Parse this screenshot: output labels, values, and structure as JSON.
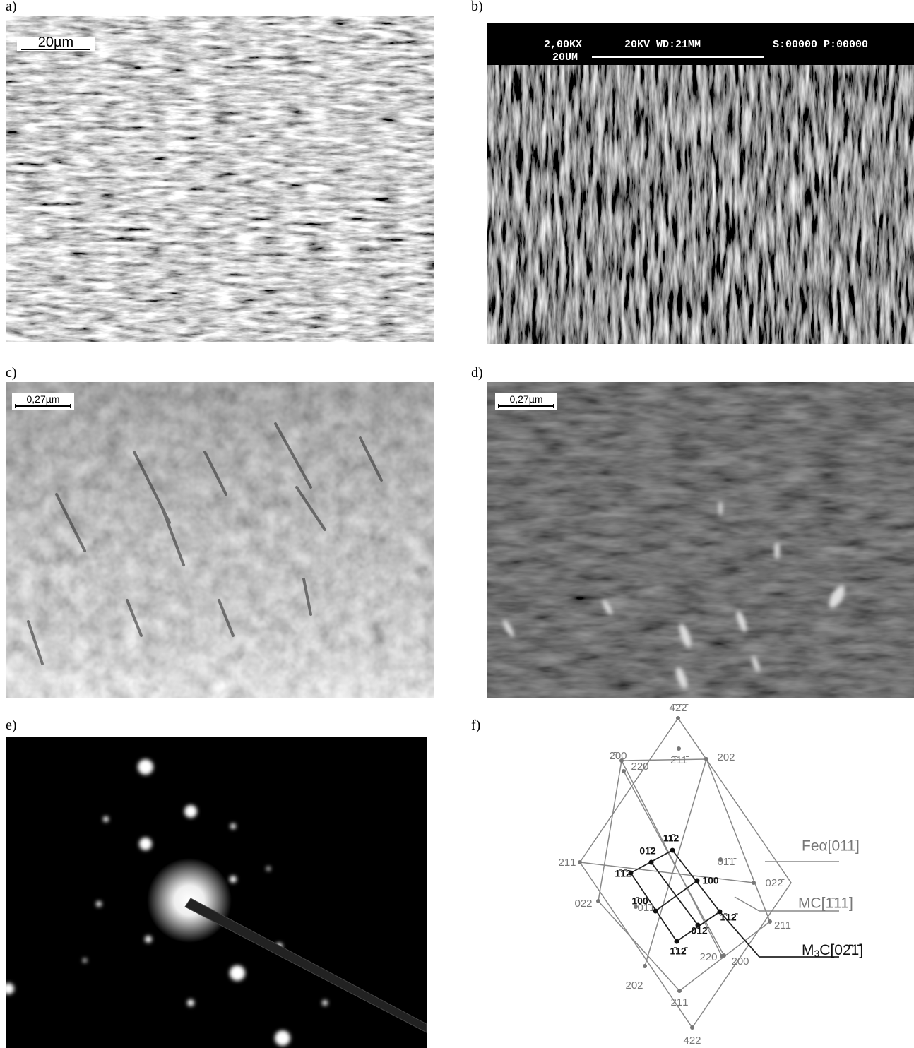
{
  "panels": {
    "a": {
      "label": "a)",
      "scale_bar": "20µm"
    },
    "b": {
      "label": "b)",
      "magnification": "2,00KX",
      "voltage_wd": "20KV WD:21MM",
      "counters": "S:00000 P:00000",
      "scale_bar": "20UM"
    },
    "c": {
      "label": "c)",
      "scale_bar": "0,27µm"
    },
    "d": {
      "label": "d)",
      "scale_bar": "0,27µm"
    },
    "e": {
      "label": "e)"
    },
    "f": {
      "label": "f)",
      "legend": {
        "fe": "Feα[011]",
        "mc": "MC[1̄11]",
        "m3c": {
          "prefix": "M",
          "sub": "3",
          "suffix": "C[02̄1̄]"
        }
      },
      "spots": [
        "4̄2̄2̄",
        "2̄11̄",
        "2̄00",
        "2̄2̄0",
        "2̄02̄",
        "2̄1̄1",
        "01̄1̄",
        "022̄",
        "02̄2",
        "01̄1",
        "211̄",
        "220",
        "200",
        "202",
        "21̄1",
        "422",
        "01̄2",
        "11̄2",
        "1̄1̄2",
        "100",
        "1̄00",
        "1̄12̄",
        "012̄",
        "1̄12̄"
      ]
    }
  }
}
